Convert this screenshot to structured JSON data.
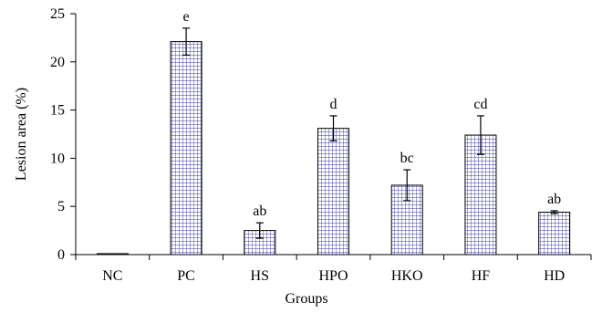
{
  "chart_data": {
    "type": "bar",
    "title": "",
    "xlabel": "Groups",
    "ylabel": "Lesion area (%)",
    "ylim": [
      0,
      25
    ],
    "yticks": [
      0,
      5,
      10,
      15,
      20,
      25
    ],
    "categories": [
      "NC",
      "PC",
      "HS",
      "HPO",
      "HKO",
      "HF",
      "HD"
    ],
    "values": [
      0.1,
      22.1,
      2.5,
      13.1,
      7.2,
      12.4,
      4.4
    ],
    "errors": [
      0,
      1.4,
      0.8,
      1.3,
      1.6,
      2.0,
      0.15
    ],
    "significance": [
      "",
      "e",
      "ab",
      "d",
      "bc",
      "cd",
      "ab"
    ],
    "bar_pattern": "grid",
    "bar_color": "#3a3aa8",
    "grid": false,
    "legend": "none"
  }
}
